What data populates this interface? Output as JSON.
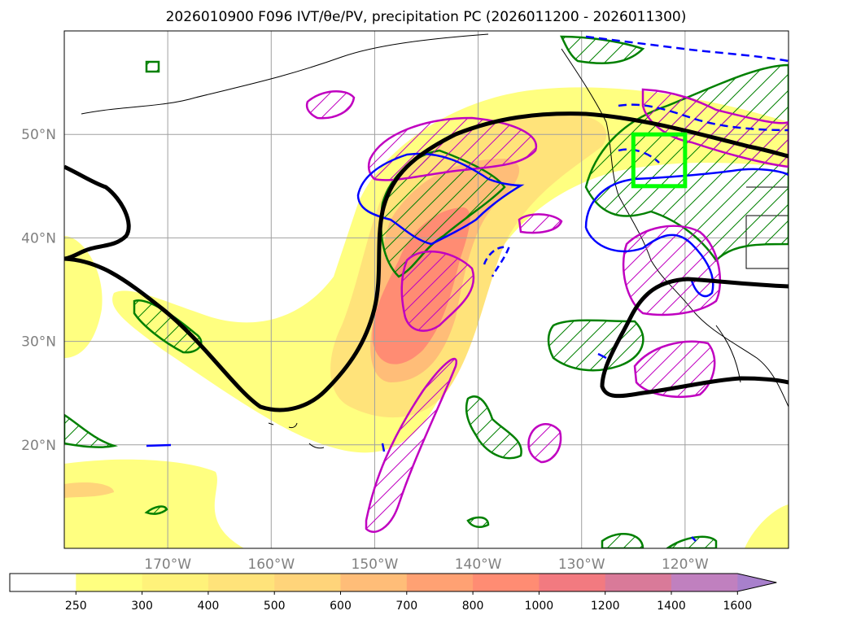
{
  "title": "2026010900 F096 IVT/θe/PV, precipitation PC (2026011200 - 2026011300)",
  "map": {
    "lon_range": [
      -180,
      -110
    ],
    "lat_range": [
      10,
      60
    ],
    "lat_ticks": [
      {
        "value": 50,
        "label": "50°N"
      },
      {
        "value": 40,
        "label": "40°N"
      },
      {
        "value": 30,
        "label": "30°N"
      },
      {
        "value": 20,
        "label": "20°N"
      }
    ],
    "lon_ticks": [
      {
        "value": -170,
        "label": "170°W"
      },
      {
        "value": -160,
        "label": "160°W"
      },
      {
        "value": -150,
        "label": "150°W"
      },
      {
        "value": -140,
        "label": "140°W"
      },
      {
        "value": -130,
        "label": "130°W"
      },
      {
        "value": -120,
        "label": "120°W"
      }
    ],
    "grid": true,
    "box": {
      "lon": [
        -125,
        -120
      ],
      "lat": [
        45,
        50
      ],
      "color": "#00ff00"
    }
  },
  "colorbar": {
    "levels": [
      "250",
      "300",
      "400",
      "500",
      "600",
      "700",
      "800",
      "1000",
      "1200",
      "1400",
      "1600"
    ],
    "colors": [
      "#ffff80",
      "#fff27a",
      "#ffe37a",
      "#ffd47a",
      "#ffbd78",
      "#ffa173",
      "#ff8c73",
      "#f27a80",
      "#d97a99",
      "#c080bf",
      "#a880cc"
    ],
    "extend": "max"
  },
  "colors": {
    "ivt_fill": "#ffd47a",
    "theta_e": "#000000",
    "pv": "#0000ff",
    "precip_green": "#008000",
    "precip_magenta": "#c000c0"
  }
}
